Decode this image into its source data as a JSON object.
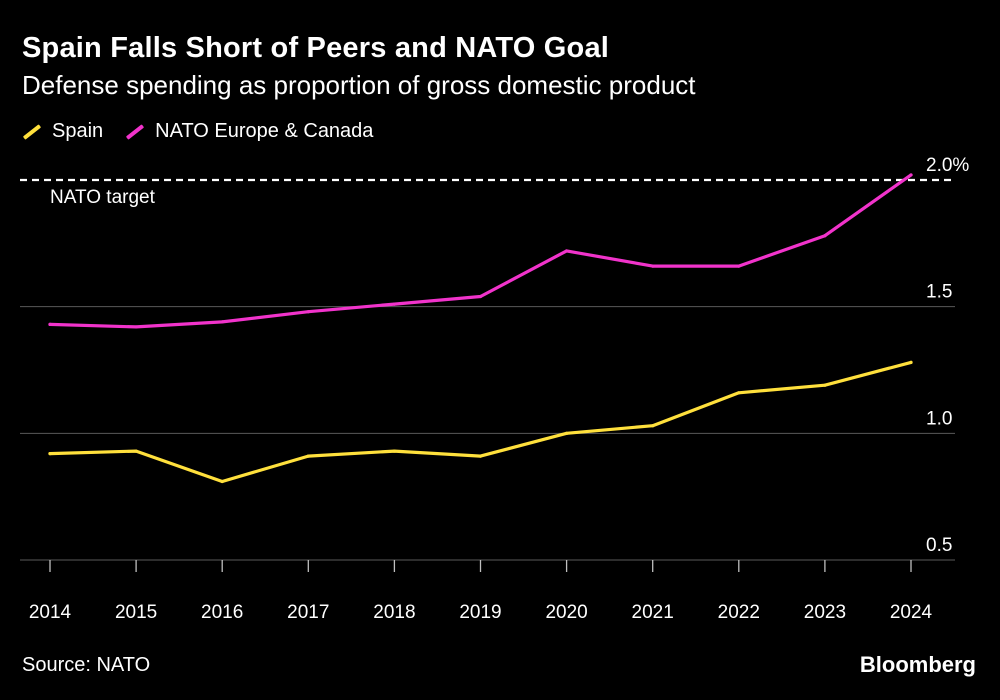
{
  "header": {
    "title": "Spain Falls Short of Peers and NATO Goal",
    "subtitle": "Defense spending as proportion of gross domestic product"
  },
  "legend": [
    {
      "label": "Spain",
      "color": "#FFE03C"
    },
    {
      "label": "NATO Europe & Canada",
      "color": "#F133CB"
    }
  ],
  "footer": {
    "source": "Source: NATO",
    "brand": "Bloomberg"
  },
  "chart_data": {
    "type": "line",
    "title": "Spain Falls Short of Peers and NATO Goal",
    "subtitle": "Defense spending as proportion of gross domestic product",
    "xlabel": "",
    "ylabel": "",
    "x": [
      "2014",
      "2015",
      "2016",
      "2017",
      "2018",
      "2019",
      "2020",
      "2021",
      "2022",
      "2023",
      "2024"
    ],
    "ylim": [
      0.5,
      2.0
    ],
    "yticks": [
      {
        "value": 0.5,
        "label": "0.5"
      },
      {
        "value": 1.0,
        "label": "1.0"
      },
      {
        "value": 1.5,
        "label": "1.5"
      },
      {
        "value": 2.0,
        "label": "2.0%"
      }
    ],
    "grid": true,
    "legend_position": "top-left",
    "series": [
      {
        "name": "Spain",
        "color": "#FFE03C",
        "values": [
          0.92,
          0.93,
          0.81,
          0.91,
          0.93,
          0.91,
          1.0,
          1.03,
          1.16,
          1.19,
          1.28
        ]
      },
      {
        "name": "NATO Europe & Canada",
        "color": "#F133CB",
        "values": [
          1.43,
          1.42,
          1.44,
          1.48,
          1.51,
          1.54,
          1.72,
          1.66,
          1.66,
          1.78,
          2.02
        ]
      }
    ],
    "reference_line": {
      "value": 2.0,
      "label": "NATO target"
    }
  }
}
